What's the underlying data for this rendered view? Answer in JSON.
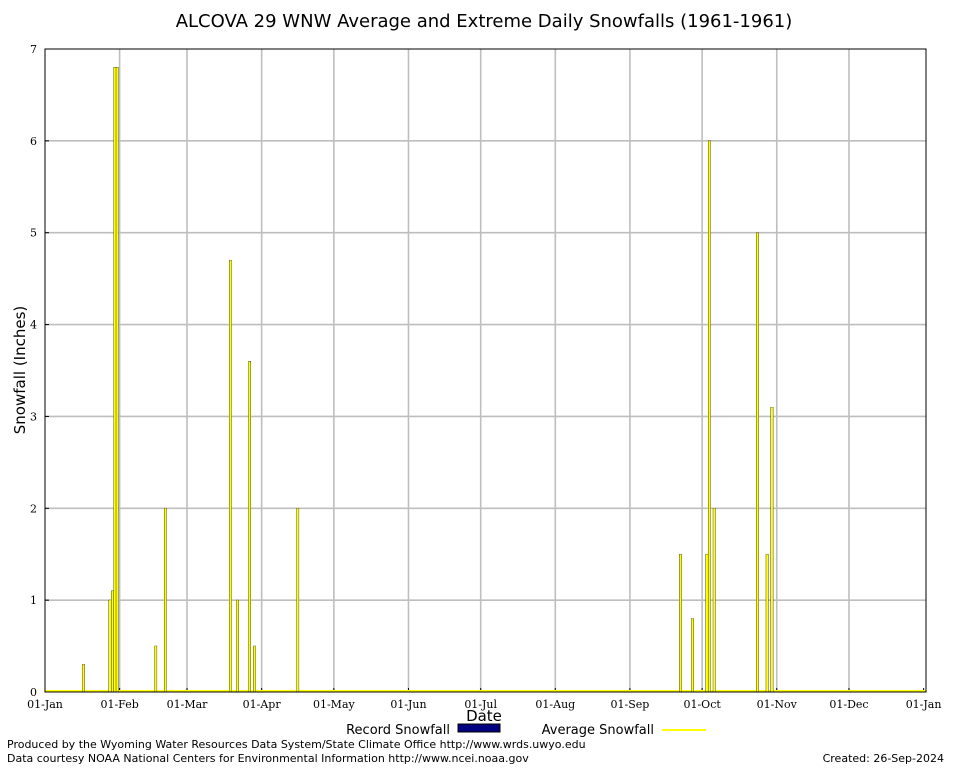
{
  "title": "ALCOVA 29 WNW Average and Extreme Daily Snowfalls (1961-1961)",
  "footer": {
    "produced_by": "Produced by the Wyoming Water Resources Data System/State Climate Office http://www.wrds.uwyo.edu",
    "data_courtesy": "Data courtesy NOAA National Centers for Environmental Information http://www.ncei.noaa.gov",
    "created": "Created:  26-Sep-2024"
  },
  "chart_data": {
    "type": "bar",
    "title": "ALCOVA 29 WNW Average and Extreme Daily Snowfalls (1961-1961)",
    "xlabel": "Date",
    "ylabel": "Snowfall (Inches)",
    "ylim": [
      0,
      7
    ],
    "yticks": [
      "0",
      "1",
      "2",
      "3",
      "4",
      "5",
      "6",
      "7"
    ],
    "xlim_days": [
      0,
      366
    ],
    "xticks": [
      {
        "day": 0,
        "label": "01-Jan"
      },
      {
        "day": 31,
        "label": "01-Feb"
      },
      {
        "day": 59,
        "label": "01-Mar"
      },
      {
        "day": 90,
        "label": "01-Apr"
      },
      {
        "day": 120,
        "label": "01-May"
      },
      {
        "day": 151,
        "label": "01-Jun"
      },
      {
        "day": 181,
        "label": "01-Jul"
      },
      {
        "day": 212,
        "label": "01-Aug"
      },
      {
        "day": 243,
        "label": "01-Sep"
      },
      {
        "day": 273,
        "label": "01-Oct"
      },
      {
        "day": 304,
        "label": "01-Nov"
      },
      {
        "day": 334,
        "label": "01-Dec"
      },
      {
        "day": 365,
        "label": "01-Jan"
      }
    ],
    "grid": true,
    "legend_position": "bottom",
    "colors": {
      "record": "#000080",
      "average": "#ffff00",
      "grid": "#bebebe"
    },
    "series": [
      {
        "name": "Record Snowfall",
        "points": [
          {
            "date": "17-Jan",
            "value": 0.3
          },
          {
            "date": "28-Jan",
            "value": 1.0
          },
          {
            "date": "29-Jan",
            "value": 1.1
          },
          {
            "date": "30-Jan",
            "value": 6.8
          },
          {
            "date": "31-Jan",
            "value": 6.8
          },
          {
            "date": "16-Feb",
            "value": 0.5
          },
          {
            "date": "20-Feb",
            "value": 2.0
          },
          {
            "date": "19-Mar",
            "value": 4.7
          },
          {
            "date": "22-Mar",
            "value": 1.0
          },
          {
            "date": "27-Mar",
            "value": 3.6
          },
          {
            "date": "29-Mar",
            "value": 0.5
          },
          {
            "date": "16-Apr",
            "value": 2.0
          },
          {
            "date": "22-Sep",
            "value": 1.5
          },
          {
            "date": "27-Sep",
            "value": 0.8
          },
          {
            "date": "03-Oct",
            "value": 1.5
          },
          {
            "date": "04-Oct",
            "value": 6.0
          },
          {
            "date": "06-Oct",
            "value": 2.0
          },
          {
            "date": "24-Oct",
            "value": 5.0
          },
          {
            "date": "28-Oct",
            "value": 1.5
          },
          {
            "date": "30-Oct",
            "value": 3.1
          }
        ]
      },
      {
        "name": "Average Snowfall",
        "points": [
          {
            "date": "17-Jan",
            "value": 0.3
          },
          {
            "date": "28-Jan",
            "value": 1.0
          },
          {
            "date": "29-Jan",
            "value": 1.1
          },
          {
            "date": "30-Jan",
            "value": 6.8
          },
          {
            "date": "31-Jan",
            "value": 6.8
          },
          {
            "date": "16-Feb",
            "value": 0.5
          },
          {
            "date": "20-Feb",
            "value": 2.0
          },
          {
            "date": "19-Mar",
            "value": 4.7
          },
          {
            "date": "22-Mar",
            "value": 1.0
          },
          {
            "date": "27-Mar",
            "value": 3.6
          },
          {
            "date": "29-Mar",
            "value": 0.5
          },
          {
            "date": "16-Apr",
            "value": 2.0
          },
          {
            "date": "22-Sep",
            "value": 1.5
          },
          {
            "date": "27-Sep",
            "value": 0.8
          },
          {
            "date": "03-Oct",
            "value": 1.5
          },
          {
            "date": "04-Oct",
            "value": 6.0
          },
          {
            "date": "06-Oct",
            "value": 2.0
          },
          {
            "date": "24-Oct",
            "value": 5.0
          },
          {
            "date": "28-Oct",
            "value": 1.5
          },
          {
            "date": "30-Oct",
            "value": 3.1
          }
        ]
      }
    ]
  }
}
